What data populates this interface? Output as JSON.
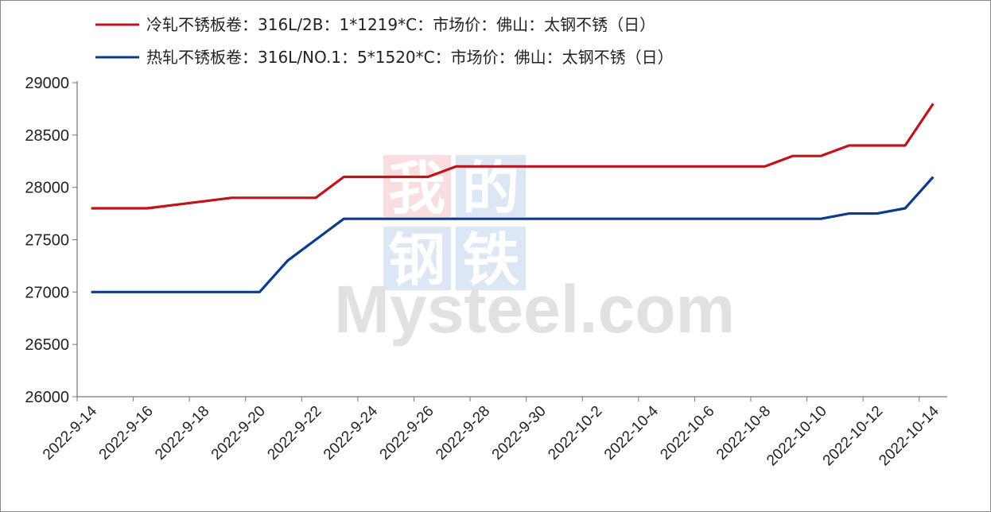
{
  "chart_data": {
    "type": "line",
    "title": "",
    "xlabel": "",
    "ylabel": "",
    "ylim": [
      26000,
      29000
    ],
    "yticks": [
      26000,
      26500,
      27000,
      27500,
      28000,
      28500,
      29000
    ],
    "grid": false,
    "legend_position": "top",
    "x": [
      "2022-9-14",
      "2022-9-15",
      "2022-9-16",
      "2022-9-17",
      "2022-9-18",
      "2022-9-19",
      "2022-9-20",
      "2022-9-21",
      "2022-9-22",
      "2022-9-23",
      "2022-9-24",
      "2022-9-25",
      "2022-9-26",
      "2022-9-27",
      "2022-9-28",
      "2022-9-29",
      "2022-9-30",
      "2022-10-1",
      "2022-10-2",
      "2022-10-3",
      "2022-10-4",
      "2022-10-5",
      "2022-10-6",
      "2022-10-7",
      "2022-10-8",
      "2022-10-9",
      "2022-10-10",
      "2022-10-11",
      "2022-10-12",
      "2022-10-13",
      "2022-10-14"
    ],
    "xtick_labels": [
      "2022-9-14",
      "2022-9-16",
      "2022-9-18",
      "2022-9-20",
      "2022-9-22",
      "2022-9-24",
      "2022-9-26",
      "2022-9-28",
      "2022-9-30",
      "2022-10-2",
      "2022-10-4",
      "2022-10-6",
      "2022-10-8",
      "2022-10-10",
      "2022-10-12",
      "2022-10-14"
    ],
    "series": [
      {
        "name": "冷轧不锈板卷：316L/2B：1*1219*C：市场价：佛山：太钢不锈（日）",
        "color": "#c0141c",
        "values": [
          27800,
          27800,
          27800,
          null,
          null,
          27900,
          27900,
          27900,
          27900,
          28100,
          null,
          null,
          28100,
          28200,
          28200,
          28200,
          28200,
          null,
          null,
          null,
          null,
          null,
          null,
          null,
          28200,
          28300,
          28300,
          28400,
          28400,
          28400,
          28800
        ]
      },
      {
        "name": "热轧不锈板卷：316L/NO.1：5*1520*C：市场价：佛山：太钢不锈（日）",
        "color": "#0b3c8c",
        "values": [
          27000,
          27000,
          27000,
          null,
          null,
          27000,
          27000,
          27300,
          27500,
          27700,
          null,
          null,
          27700,
          27700,
          27700,
          27700,
          27700,
          null,
          null,
          null,
          null,
          null,
          null,
          null,
          27700,
          27700,
          27700,
          27750,
          27750,
          27800,
          28100
        ]
      }
    ]
  },
  "watermark": {
    "cn": [
      "我",
      "的",
      "钢",
      "铁"
    ],
    "en": "Mysteel.com"
  }
}
